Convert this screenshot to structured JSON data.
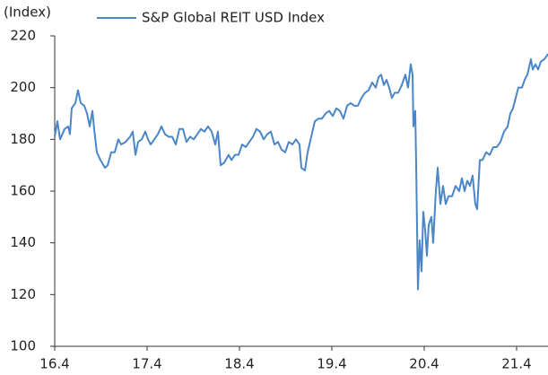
{
  "chart_data": {
    "type": "line",
    "y_label": "(Index)",
    "x": [
      16.25,
      16.279,
      16.308,
      16.357,
      16.396,
      16.415,
      16.434,
      16.473,
      16.502,
      16.532,
      16.57,
      16.6,
      16.629,
      16.658,
      16.677,
      16.706,
      16.745,
      16.794,
      16.823,
      16.862,
      16.9,
      16.939,
      16.968,
      17.017,
      17.066,
      17.095,
      17.124,
      17.153,
      17.192,
      17.231,
      17.26,
      17.289,
      17.328,
      17.367,
      17.405,
      17.444,
      17.483,
      17.522,
      17.561,
      17.6,
      17.638,
      17.677,
      17.716,
      17.755,
      17.794,
      17.833,
      17.871,
      17.91,
      17.949,
      17.988,
      18.017,
      18.046,
      18.085,
      18.133,
      18.163,
      18.201,
      18.24,
      18.279,
      18.318,
      18.357,
      18.396,
      18.434,
      18.473,
      18.512,
      18.551,
      18.59,
      18.629,
      18.667,
      18.706,
      18.745,
      18.784,
      18.823,
      18.862,
      18.9,
      18.92,
      18.959,
      18.988,
      19.027,
      19.066,
      19.104,
      19.143,
      19.182,
      19.221,
      19.26,
      19.299,
      19.337,
      19.376,
      19.415,
      19.454,
      19.493,
      19.532,
      19.57,
      19.609,
      19.648,
      19.687,
      19.726,
      19.755,
      19.784,
      19.813,
      19.842,
      19.871,
      19.9,
      19.93,
      19.968,
      20.007,
      20.046,
      20.075,
      20.104,
      20.124,
      20.133,
      20.153,
      20.163,
      20.182,
      20.201,
      20.221,
      20.24,
      20.26,
      20.279,
      20.299,
      20.328,
      20.347,
      20.376,
      20.396,
      20.425,
      20.454,
      20.483,
      20.512,
      20.551,
      20.59,
      20.629,
      20.658,
      20.687,
      20.716,
      20.745,
      20.774,
      20.803,
      20.823,
      20.852,
      20.881,
      20.92,
      20.959,
      20.998,
      21.036,
      21.075,
      21.114,
      21.153,
      21.182,
      21.211,
      21.24,
      21.269,
      21.308,
      21.337,
      21.367,
      21.405,
      21.425,
      21.454,
      21.483,
      21.512,
      21.551,
      21.59
    ],
    "series": [
      {
        "name": "S&P Global REIT USD Index",
        "color": "#4a86c8",
        "values": [
          181,
          187,
          180,
          184,
          185,
          182,
          192,
          194,
          199,
          194,
          193,
          190,
          185,
          191,
          184,
          175,
          172,
          169,
          170,
          175,
          175,
          180,
          178,
          179,
          181,
          183,
          174,
          179,
          180,
          183,
          180,
          178,
          180,
          182,
          185,
          182,
          181,
          181,
          178,
          184,
          184,
          179,
          181,
          180,
          182,
          184,
          183,
          185,
          183,
          178,
          183,
          170,
          171,
          174,
          172,
          174,
          174,
          178,
          177,
          179,
          181,
          184,
          183,
          180,
          182,
          183,
          178,
          179,
          176,
          175,
          179,
          178,
          180,
          178,
          169,
          168,
          175,
          181,
          187,
          188,
          188,
          190,
          191,
          189,
          192,
          191,
          188,
          193,
          194,
          193,
          193,
          196,
          198,
          199,
          202,
          200,
          204,
          205,
          201,
          203,
          200,
          196,
          198,
          198,
          201,
          205,
          200,
          209,
          205,
          185,
          191,
          170,
          122,
          141,
          129,
          152,
          145,
          135,
          147,
          150,
          140,
          160,
          169,
          155,
          162,
          155,
          158,
          158,
          162,
          160,
          165,
          160,
          164,
          162,
          166,
          155,
          153,
          172,
          172,
          175,
          174,
          177,
          177,
          179,
          183,
          185,
          190,
          192,
          196,
          200,
          200,
          203,
          205,
          211,
          207,
          209,
          207,
          210,
          211,
          213
        ]
      }
    ],
    "xlim": [
      16.25,
      21.59
    ],
    "xticks": [
      {
        "value": 16.25,
        "label": "16.4"
      },
      {
        "value": 17.25,
        "label": "17.4"
      },
      {
        "value": 18.25,
        "label": "18.4"
      },
      {
        "value": 19.25,
        "label": "19.4"
      },
      {
        "value": 20.25,
        "label": "20.4"
      },
      {
        "value": 21.25,
        "label": "21.4"
      }
    ],
    "ylim": [
      100,
      220
    ],
    "yticks": [
      100,
      120,
      140,
      160,
      180,
      200,
      220
    ],
    "grid": false
  }
}
